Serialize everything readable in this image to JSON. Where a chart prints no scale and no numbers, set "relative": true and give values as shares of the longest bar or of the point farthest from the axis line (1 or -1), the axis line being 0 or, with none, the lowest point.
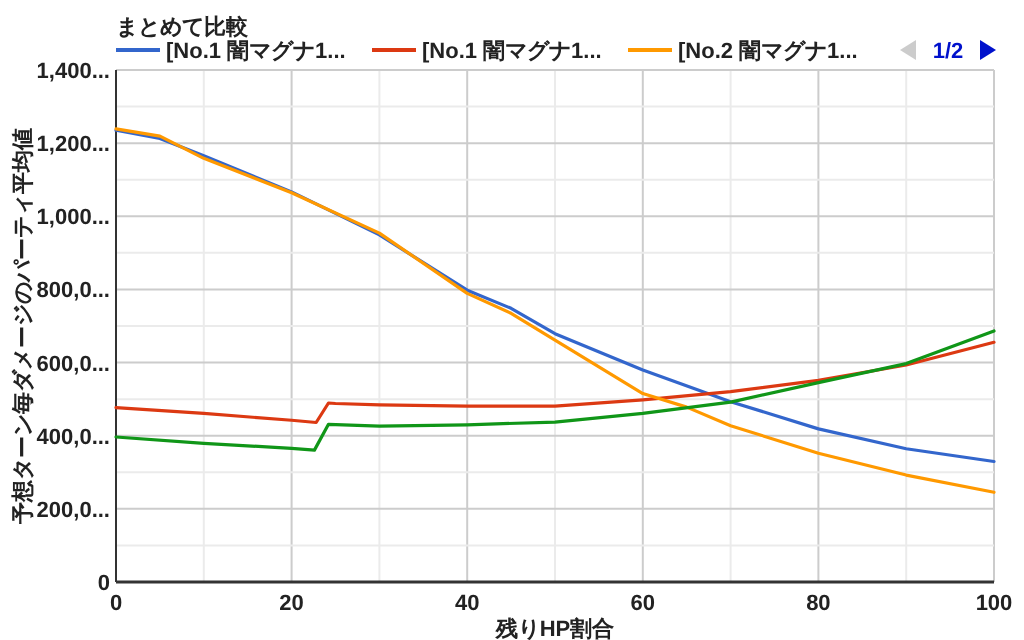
{
  "chart_data": {
    "type": "line",
    "title": "まとめて比較",
    "xlabel": "残りHP割合",
    "ylabel": "予想ターン毎ダメージのパーティ平均値",
    "annotations": [
      "1/2",
      "0",
      "200,0...",
      "400,0...",
      "600,0...",
      "800,0...",
      "1,000...",
      "1,200...",
      "1,400..."
    ],
    "relative": true,
    "series": [
      {
        "name": "[No.1 闇マグナ1...",
        "color": "#3366cc",
        "x": [
          0,
          5,
          10,
          20,
          30,
          40,
          45,
          50,
          60,
          70,
          80,
          90,
          100
        ],
        "values": [
          0.997,
          0.979,
          0.941,
          0.861,
          0.766,
          0.644,
          0.604,
          0.548,
          0.468,
          0.398,
          0.338,
          0.294,
          0.266
        ]
      },
      {
        "name": "[No.1 闇マグナ1...",
        "color": "#dc3912",
        "x": [
          0,
          10,
          20,
          22.8,
          24.2,
          25,
          30,
          40,
          50,
          60,
          70,
          80,
          90,
          100
        ],
        "values": [
          0.385,
          0.372,
          0.357,
          0.352,
          0.395,
          0.394,
          0.391,
          0.388,
          0.388,
          0.402,
          0.42,
          0.445,
          0.479,
          0.529
        ]
      },
      {
        "name": "[No.2 闇マグナ1...",
        "color": "#ff9900",
        "x": [
          0,
          5,
          10,
          20,
          30,
          40,
          45,
          50,
          60,
          65,
          70,
          80,
          90,
          100
        ],
        "values": [
          1,
          0.984,
          0.935,
          0.859,
          0.77,
          0.637,
          0.593,
          0.534,
          0.416,
          0.386,
          0.345,
          0.284,
          0.236,
          0.198
        ]
      },
      {
        "color": "#109618",
        "x": [
          0,
          10,
          20,
          22.6,
          24.2,
          30,
          40,
          50,
          60,
          70,
          80,
          90,
          100
        ],
        "values": [
          0.32,
          0.306,
          0.295,
          0.291,
          0.348,
          0.344,
          0.347,
          0.353,
          0.372,
          0.397,
          0.44,
          0.482,
          0.554
        ]
      }
    ],
    "xlim": [
      0,
      100
    ],
    "xticks": [
      0,
      20,
      40,
      60,
      80,
      100
    ],
    "grid": true,
    "legend": "top",
    "marker": "none",
    "line_style": "solid"
  }
}
